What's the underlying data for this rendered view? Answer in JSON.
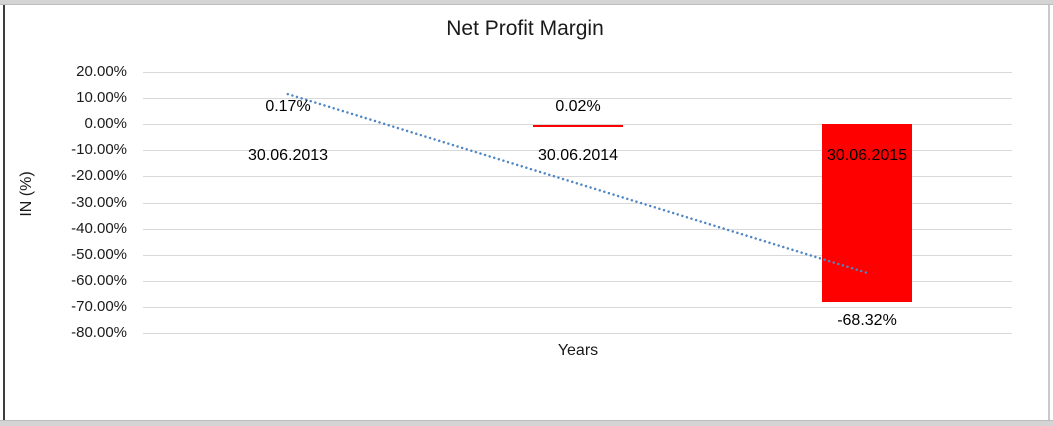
{
  "frame": {
    "background": "#ffffff",
    "outer_strip_color": "#d4d4d4",
    "left_border_color": "#3c3c3c",
    "right_border_color": "#c9c9c9"
  },
  "chart_data": {
    "type": "bar",
    "title": "Net Profit Margin",
    "xlabel": "Years",
    "ylabel": "IN (%)",
    "categories": [
      "30.06.2013",
      "30.06.2014",
      "30.06.2015"
    ],
    "series": [
      {
        "name": "Net Profit Margin",
        "color": "#ff0000",
        "values": [
          0.17,
          0.02,
          -68.32
        ],
        "data_labels": [
          "0.17%",
          "0.02%",
          "-68.32%"
        ]
      }
    ],
    "ylim": [
      -80,
      20
    ],
    "y_tick_values": [
      20,
      10,
      0,
      -10,
      -20,
      -30,
      -40,
      -50,
      -60,
      -70,
      -80
    ],
    "y_tick_labels": [
      "20.00%",
      "10.00%",
      "0.00%",
      "-10.00%",
      "-20.00%",
      "-30.00%",
      "-40.00%",
      "-50.00%",
      "-60.00%",
      "-70.00%",
      "-80.00%"
    ],
    "gridlines": true,
    "gridline_color": "#d9d9d9",
    "legend": "none",
    "text_color": "#000000",
    "trendline": {
      "type": "linear",
      "style": "dotted",
      "color": "#4f86c4",
      "start_value": 11.53,
      "end_value": -56.96
    },
    "bar_rendered_as_hairline": [
      false,
      true,
      false
    ]
  }
}
